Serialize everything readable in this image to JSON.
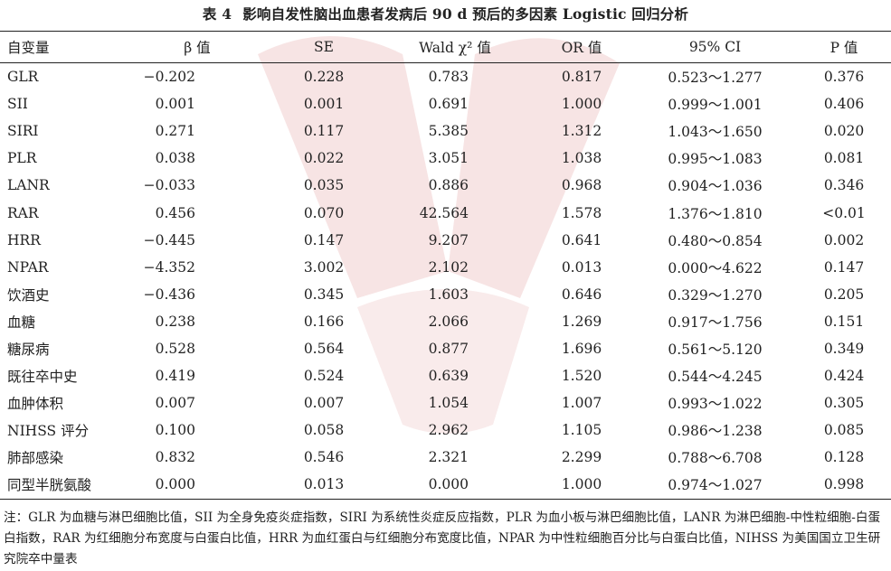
{
  "caption": {
    "number": "表 4",
    "title": "影响自发性脑出血患者发病后 90 d 预后的多因素 Logistic 回归分析"
  },
  "table": {
    "headers": [
      "自变量",
      "β 值",
      "SE",
      "Wald χ² 值",
      "OR 值",
      "95% CI",
      "P 值"
    ],
    "rows": [
      [
        "GLR",
        "−0.202",
        "0.228",
        "0.783",
        "0.817",
        "0.523～1.277",
        "0.376"
      ],
      [
        "SII",
        "0.001",
        "0.001",
        "0.691",
        "1.000",
        "0.999～1.001",
        "0.406"
      ],
      [
        "SIRI",
        "0.271",
        "0.117",
        "5.385",
        "1.312",
        "1.043～1.650",
        "0.020"
      ],
      [
        "PLR",
        "0.038",
        "0.022",
        "3.051",
        "1.038",
        "0.995～1.083",
        "0.081"
      ],
      [
        "LANR",
        "−0.033",
        "0.035",
        "0.886",
        "0.968",
        "0.904～1.036",
        "0.346"
      ],
      [
        "RAR",
        "0.456",
        "0.070",
        "42.564",
        "1.578",
        "1.376～1.810",
        "<0.01"
      ],
      [
        "HRR",
        "−0.445",
        "0.147",
        "9.207",
        "0.641",
        "0.480～0.854",
        "0.002"
      ],
      [
        "NPAR",
        "−4.352",
        "3.002",
        "2.102",
        "0.013",
        "0.000～4.622",
        "0.147"
      ],
      [
        "饮酒史",
        "−0.436",
        "0.345",
        "1.603",
        "0.646",
        "0.329～1.270",
        "0.205"
      ],
      [
        "血糖",
        "0.238",
        "0.166",
        "2.066",
        "1.269",
        "0.917～1.756",
        "0.151"
      ],
      [
        "糖尿病",
        "0.528",
        "0.564",
        "0.877",
        "1.696",
        "0.561～5.120",
        "0.349"
      ],
      [
        "既往卒中史",
        "0.419",
        "0.524",
        "0.639",
        "1.520",
        "0.544～4.245",
        "0.424"
      ],
      [
        "血肿体积",
        "0.007",
        "0.007",
        "1.054",
        "1.007",
        "0.993～1.022",
        "0.305"
      ],
      [
        "NIHSS 评分",
        "0.100",
        "0.058",
        "2.962",
        "1.105",
        "0.986～1.238",
        "0.085"
      ],
      [
        "肺部感染",
        "0.832",
        "0.546",
        "2.321",
        "2.299",
        "0.788～6.708",
        "0.128"
      ],
      [
        "同型半胱氨酸",
        "0.000",
        "0.013",
        "0.000",
        "1.000",
        "0.974～1.027",
        "0.998"
      ]
    ]
  },
  "note": "注：GLR 为血糖与淋巴细胞比值，SII 为全身免疫炎症指数，SIRI 为系统性炎症反应指数，PLR 为血小板与淋巴细胞比值，LANR 为淋巴细胞-中性粒细胞-白蛋白指数，RAR 为红细胞分布宽度与白蛋白比值，HRR 为血红蛋白与红细胞分布宽度比值，NPAR 为中性粒细胞百分比与白蛋白比值，NIHSS 为美国国立卫生研究院卒中量表",
  "colors": {
    "watermark": "#f6e1e1",
    "rule": "#222222"
  }
}
